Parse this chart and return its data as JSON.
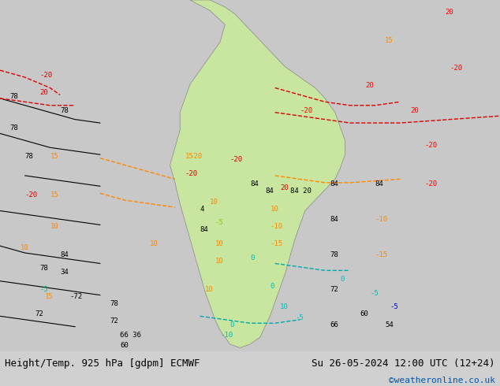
{
  "title_left": "Height/Temp. 925 hPa [gdpm] ECMWF",
  "title_right": "Su 26-05-2024 12:00 UTC (12+24)",
  "credit": "©weatheronline.co.uk",
  "bg_color": "#d0d0d0",
  "land_color": "#c8e6a0",
  "figsize": [
    6.34,
    4.9
  ],
  "dpi": 100,
  "title_fontsize": 9,
  "credit_fontsize": 8,
  "credit_color": "#0055aa",
  "bottom_bar_height": 0.08
}
